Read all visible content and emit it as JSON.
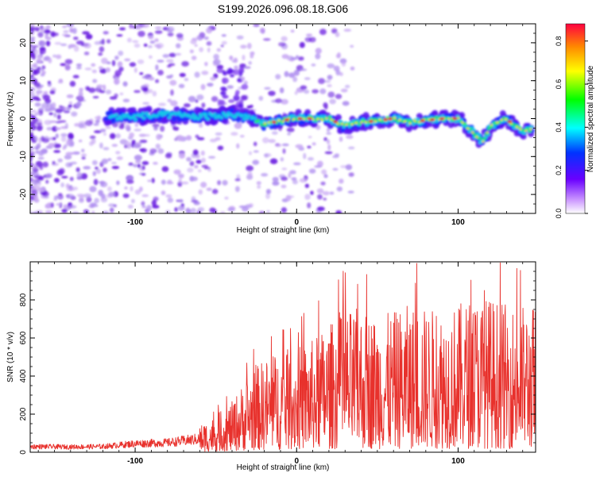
{
  "title": "S199.2026.096.08.18.G06",
  "colors": {
    "snr_line": "#e8312c",
    "spectrogram_track_mid": "#20c8e0",
    "spectrogram_track_core": "#e82020",
    "background": "#ffffff"
  },
  "chart_data": [
    {
      "type": "heatmap",
      "name": "spectrogram",
      "xlabel": "Height of straight line (km)",
      "ylabel": "Frequency (Hz)",
      "xlim": [
        -165,
        148
      ],
      "ylim": [
        -25,
        25
      ],
      "xticks": [
        -100,
        0,
        100
      ],
      "yticks": [
        -20,
        -10,
        0,
        10,
        20
      ],
      "ridge": {
        "x": [
          -115,
          -100,
          -80,
          -60,
          -40,
          -30,
          -20,
          -10,
          0,
          10,
          20,
          30,
          40,
          50,
          60,
          70,
          80,
          90,
          100,
          105,
          110,
          115,
          120,
          125,
          130,
          135,
          140,
          145
        ],
        "y": [
          0.5,
          0.5,
          1,
          0.5,
          1,
          0.5,
          -1.5,
          -0.5,
          0,
          0,
          0,
          -2,
          -1,
          -0.5,
          0,
          -1,
          -0.5,
          0,
          0,
          -2,
          -4,
          -6,
          -2,
          -1,
          0,
          -2,
          -3,
          -3
        ]
      },
      "colorbar": {
        "label": "Normalized spectral amplitude",
        "range": [
          0.0,
          0.88
        ],
        "ticks": [
          "0.0",
          "0.2",
          "0.4",
          "0.6",
          "0.8"
        ]
      }
    },
    {
      "type": "line",
      "name": "snr",
      "xlabel": "Height of straight line (km)",
      "ylabel": "SNR (10 * v/v)",
      "xlim": [
        -165,
        148
      ],
      "ylim": [
        0,
        1000
      ],
      "xticks": [
        -100,
        0,
        100
      ],
      "yticks": [
        0,
        200,
        400,
        600,
        800
      ],
      "series": [
        {
          "name": "SNR",
          "x": [
            -165,
            -140,
            -120,
            -100,
            -80,
            -60,
            -50,
            -40,
            -30,
            -20,
            -10,
            0,
            10,
            20,
            30,
            40,
            50,
            60,
            70,
            80,
            90,
            100,
            110,
            120,
            130,
            140,
            148
          ],
          "y": [
            30,
            28,
            30,
            45,
            50,
            70,
            95,
            130,
            200,
            240,
            260,
            270,
            290,
            330,
            360,
            370,
            350,
            360,
            380,
            370,
            370,
            380,
            400,
            400,
            380,
            380,
            380
          ]
        }
      ]
    }
  ]
}
